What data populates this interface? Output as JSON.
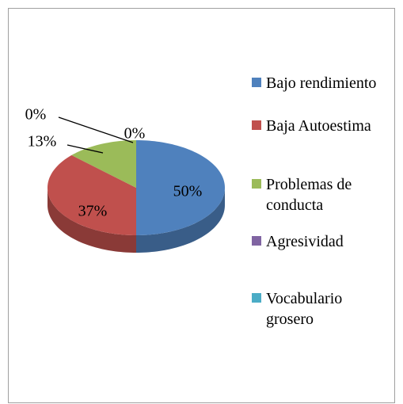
{
  "chart_data": {
    "type": "pie",
    "categories": [
      "Bajo rendimiento",
      "Baja Autoestima",
      "Problemas de conducta",
      "Agresividad",
      "Vocabulario grosero"
    ],
    "values": [
      50,
      37,
      13,
      0,
      0
    ],
    "value_labels": [
      "50%",
      "37%",
      "13%",
      "0%",
      "0%"
    ],
    "colors": [
      "#4f81bd",
      "#c0504d",
      "#9bbb59",
      "#8064a2",
      "#4bacc6"
    ],
    "legend": "right"
  }
}
